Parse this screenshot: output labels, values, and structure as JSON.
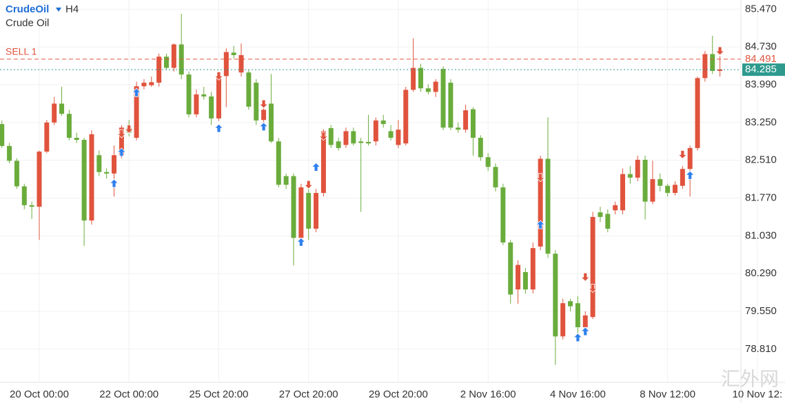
{
  "header": {
    "symbol": "CrudeOil",
    "timeframe": "H4",
    "name": "Crude Oil"
  },
  "watermark": "汇外网",
  "chart_data": {
    "type": "candlestick",
    "up_color": "#e0533d",
    "down_color": "#6aac3c",
    "grid": true,
    "candles": {
      "open": [
        83.22,
        82.79,
        82.5,
        82.0,
        81.63,
        81.6,
        82.68,
        83.25,
        83.62,
        83.42,
        82.95,
        82.91,
        81.33,
        82.61,
        82.28,
        82.25,
        82.61,
        83.15,
        82.95,
        83.96,
        83.98,
        84.03,
        84.54,
        84.32,
        84.78,
        84.19,
        83.41,
        83.8,
        83.76,
        83.33,
        84.16,
        84.62,
        84.23,
        84.23,
        84.03,
        83.3,
        83.62,
        82.88,
        82.2,
        82.2,
        80.99,
        81.87,
        81.17,
        81.87,
        83.14,
        82.88,
        82.81,
        83.08,
        82.88,
        82.87,
        82.88,
        83.29,
        83.08,
        82.81,
        82.84,
        83.89,
        84.32,
        83.92,
        83.85,
        84.3,
        84.03,
        83.15,
        83.11,
        83.51,
        82.95,
        82.57,
        82.38,
        81.98,
        80.9,
        79.98,
        80.32,
        79.98,
        80.82,
        82.54,
        80.68,
        79.06,
        79.75,
        79.71,
        79.24,
        79.44,
        81.49,
        81.46,
        81.53,
        81.53,
        82.24,
        82.17,
        82.52,
        81.7,
        82.14,
        82.01,
        81.87,
        82.01,
        82.34,
        82.75,
        84.12,
        84.59,
        84.26
      ],
      "high": [
        83.29,
        82.85,
        82.55,
        82.05,
        81.7,
        82.7,
        83.3,
        83.75,
        83.95,
        83.5,
        83.05,
        82.95,
        83.1,
        82.7,
        82.35,
        82.8,
        83.2,
        83.3,
        84.05,
        84.1,
        84.15,
        84.6,
        84.6,
        84.8,
        85.38,
        84.25,
        83.9,
        83.95,
        83.85,
        84.2,
        84.7,
        84.75,
        84.8,
        84.28,
        84.1,
        83.6,
        84.2,
        82.95,
        82.25,
        82.25,
        82.05,
        81.95,
        81.95,
        83.12,
        83.2,
        82.95,
        83.15,
        83.15,
        82.95,
        83.4,
        83.35,
        83.4,
        83.2,
        83.3,
        83.95,
        84.9,
        84.4,
        84.0,
        84.1,
        84.35,
        84.1,
        83.25,
        83.6,
        83.55,
        83.0,
        82.65,
        82.45,
        82.05,
        80.95,
        80.55,
        80.4,
        80.9,
        82.6,
        83.35,
        80.75,
        79.8,
        79.8,
        79.85,
        79.55,
        81.5,
        81.6,
        81.55,
        81.7,
        82.35,
        82.4,
        82.6,
        82.6,
        82.5,
        82.25,
        82.05,
        82.1,
        82.4,
        82.8,
        84.15,
        84.65,
        84.95,
        84.55
      ],
      "low": [
        82.75,
        82.45,
        81.95,
        81.55,
        81.36,
        80.95,
        82.65,
        83.2,
        83.38,
        82.9,
        82.85,
        80.83,
        81.25,
        82.2,
        82.15,
        81.8,
        82.55,
        82.98,
        82.9,
        83.9,
        83.95,
        83.95,
        84.28,
        84.25,
        84.1,
        83.35,
        83.35,
        83.7,
        83.2,
        83.28,
        83.55,
        84.5,
        84.15,
        83.5,
        83.2,
        83.25,
        82.85,
        81.98,
        81.95,
        80.45,
        80.93,
        80.95,
        81.1,
        81.8,
        82.75,
        82.7,
        82.75,
        82.8,
        81.5,
        82.8,
        82.8,
        83.15,
        82.9,
        82.75,
        82.8,
        83.85,
        83.85,
        83.8,
        83.75,
        83.1,
        83.1,
        83.05,
        83.05,
        82.6,
        82.5,
        82.3,
        81.9,
        80.85,
        79.7,
        79.7,
        79.9,
        79.9,
        80.75,
        80.6,
        78.5,
        79.0,
        79.55,
        79.1,
        79.15,
        79.4,
        81.3,
        81.1,
        81.45,
        81.45,
        82.05,
        82.1,
        81.35,
        81.65,
        81.9,
        81.8,
        81.82,
        81.95,
        81.8,
        82.7,
        84.05,
        84.2,
        84.15
      ],
      "close": [
        82.79,
        82.5,
        82.0,
        81.63,
        81.6,
        82.68,
        83.25,
        83.62,
        83.42,
        82.95,
        82.91,
        81.33,
        83.02,
        82.28,
        82.25,
        82.61,
        83.15,
        83.05,
        83.96,
        84.03,
        84.04,
        84.54,
        84.32,
        84.78,
        84.19,
        83.41,
        83.8,
        83.76,
        83.33,
        84.16,
        84.63,
        84.57,
        84.57,
        83.56,
        83.29,
        83.5,
        82.88,
        82.03,
        82.03,
        80.99,
        81.98,
        81.17,
        81.87,
        83.08,
        82.81,
        82.75,
        83.08,
        82.84,
        82.85,
        82.84,
        83.29,
        83.22,
        82.95,
        83.11,
        83.89,
        84.32,
        83.92,
        83.85,
        84.05,
        83.15,
        83.15,
        83.11,
        83.49,
        82.95,
        82.57,
        82.38,
        81.98,
        80.9,
        79.88,
        80.46,
        79.98,
        80.79,
        82.54,
        80.68,
        79.06,
        79.71,
        79.65,
        79.24,
        79.47,
        81.4,
        81.4,
        81.17,
        81.63,
        82.24,
        82.17,
        82.52,
        81.7,
        82.14,
        82.01,
        81.87,
        82.03,
        82.34,
        82.75,
        84.12,
        84.59,
        84.26,
        84.29
      ]
    },
    "xlim": [
      -0.25,
      98.8
    ],
    "xticks": [
      {
        "value": 5,
        "label": "20 Oct 00:00"
      },
      {
        "value": 17,
        "label": "22 Oct 00:00"
      },
      {
        "value": 29,
        "label": "25 Oct 20:00"
      },
      {
        "value": 41,
        "label": "27 Oct 20:00"
      },
      {
        "value": 53,
        "label": "29 Oct 20:00"
      },
      {
        "value": 65,
        "label": "2 Nov 16:00"
      },
      {
        "value": 77,
        "label": "4 Nov 16:00"
      },
      {
        "value": 89,
        "label": "8 Nov 12:00"
      },
      {
        "value": 101,
        "label": "10 Nov 12:"
      }
    ],
    "ylim": [
      78.16,
      85.65
    ],
    "yticks": [
      {
        "value": 85.47,
        "label": "85.470"
      },
      {
        "value": 84.73,
        "label": "84.730"
      },
      {
        "value": 83.99,
        "label": "83.990"
      },
      {
        "value": 83.25,
        "label": "83.250"
      },
      {
        "value": 82.51,
        "label": "82.510"
      },
      {
        "value": 81.77,
        "label": "81.770"
      },
      {
        "value": 81.03,
        "label": "81.030"
      },
      {
        "value": 80.29,
        "label": "80.290"
      },
      {
        "value": 79.55,
        "label": "79.550"
      },
      {
        "value": 78.81,
        "label": "78.810"
      }
    ],
    "lines": [
      {
        "label": "SELL 1",
        "value": 84.491,
        "color": "#e0533d",
        "style": "dashed"
      },
      {
        "value": 84.285,
        "color": "#2e9a8e",
        "style": "dotted"
      }
    ],
    "buy_signals": {
      "color": "#2f80ed",
      "index": [
        15,
        16,
        18,
        29,
        35,
        40,
        42,
        72,
        77,
        78,
        92
      ],
      "price": [
        82.14,
        82.75,
        83.92,
        83.22,
        83.25,
        80.99,
        82.46,
        81.33,
        79.12,
        79.24,
        82.3
      ]
    },
    "sell_signals": {
      "color": "#e0533d",
      "index": [
        16,
        17,
        29,
        35,
        41,
        43,
        72,
        78,
        79,
        91,
        96
      ],
      "price": [
        82.95,
        83.04,
        84.08,
        83.53,
        81.95,
        82.9,
        82.09,
        80.14,
        79.92,
        82.54,
        84.57
      ]
    }
  }
}
